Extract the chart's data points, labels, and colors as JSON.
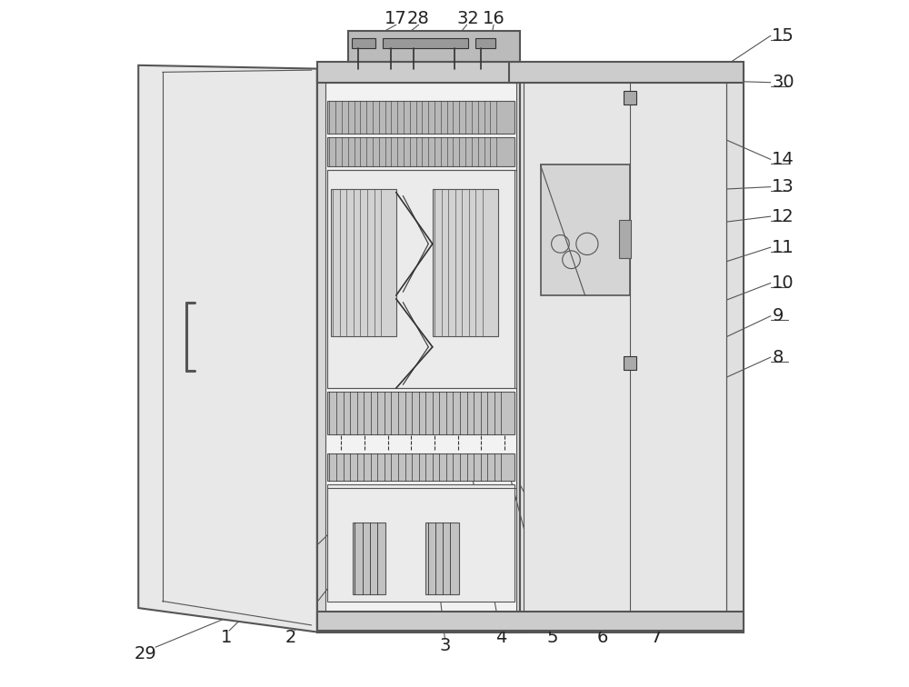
{
  "bg_color": "#ffffff",
  "line_color": "#555555",
  "dark_line": "#333333",
  "light_gray": "#aaaaaa",
  "mid_gray": "#888888",
  "label_fs": 14,
  "label_color": "#222222",
  "lw_main": 1.5,
  "lw_thin": 0.8,
  "lw_med": 1.2
}
